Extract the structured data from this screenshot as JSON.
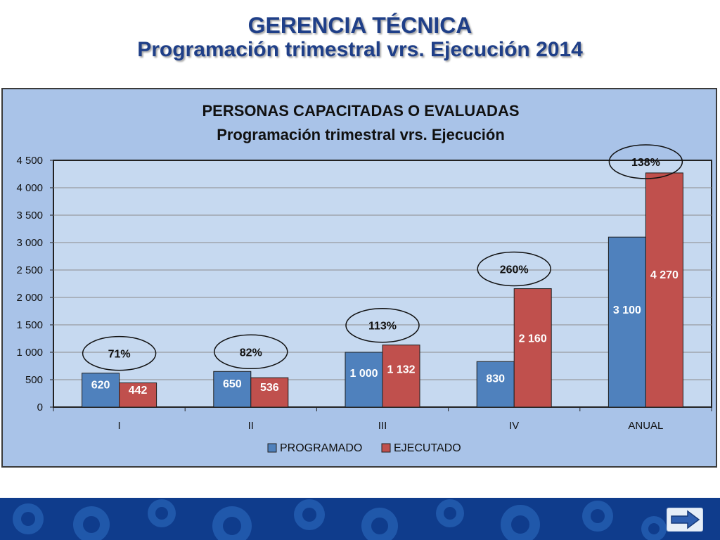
{
  "slide": {
    "title_line1": "GERENCIA TÉCNICA",
    "title_line2": "Programación trimestral vrs. Ejecución 2014"
  },
  "colors": {
    "title": "#1f3f88",
    "panel_background": "#a9c3e8",
    "plot_background": "#c6d9f0",
    "programado": "#4f81bd",
    "ejecutado": "#c0504d",
    "footer": "#0f3c8c"
  },
  "chart_data": {
    "type": "bar",
    "title": "PERSONAS CAPACITADAS O EVALUADAS",
    "subtitle": "Programación trimestral vrs. Ejecución",
    "categories": [
      "I",
      "II",
      "III",
      "IV",
      "ANUAL"
    ],
    "series": [
      {
        "name": "PROGRAMADO",
        "values": [
          620,
          650,
          1000,
          830,
          3100
        ],
        "labels": [
          "620",
          "650",
          "1 000",
          "830",
          "3 100"
        ]
      },
      {
        "name": "EJECUTADO",
        "values": [
          442,
          536,
          1132,
          2160,
          4270
        ],
        "labels": [
          "442",
          "536",
          "1 132",
          "2 160",
          "4 270"
        ]
      }
    ],
    "annotations": [
      "71%",
      "82%",
      "113%",
      "260%",
      "138%"
    ],
    "yticks": [
      "0",
      "500",
      "1 000",
      "1 500",
      "2 000",
      "2 500",
      "3 000",
      "3 500",
      "4 000",
      "4 500"
    ],
    "ylim": [
      0,
      4500
    ],
    "grid": true,
    "legend_position": "bottom"
  },
  "navigation": {
    "next_icon": "right-arrow-icon"
  }
}
